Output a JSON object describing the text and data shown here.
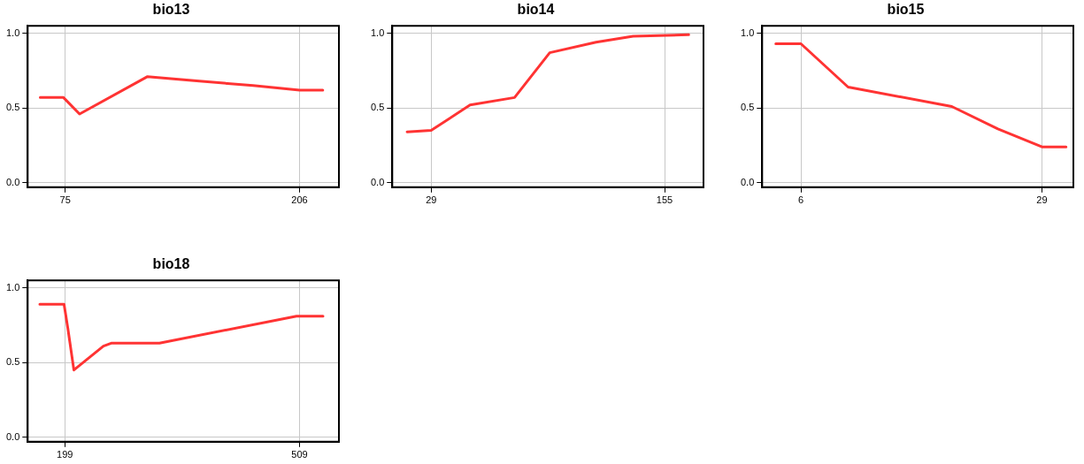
{
  "chart_data": [
    {
      "type": "line",
      "title": "bio13",
      "x": [
        61,
        74,
        83,
        121,
        150,
        180,
        206,
        219
      ],
      "series": [
        {
          "color": "#ff3333",
          "values": [
            0.57,
            0.57,
            0.46,
            0.71,
            0.68,
            0.65,
            0.62,
            0.62
          ]
        }
      ],
      "xlim": [
        54,
        228
      ],
      "xticks": [
        75,
        206
      ],
      "ylim": [
        -0.03,
        1.05
      ],
      "yticks": [
        {
          "value": 0,
          "label": "0.0"
        },
        {
          "value": 0.5,
          "label": "0.5"
        },
        {
          "value": 1,
          "label": "1.0"
        }
      ],
      "grid": true,
      "marker": "none",
      "legend": false
    },
    {
      "type": "line",
      "title": "bio14",
      "x": [
        16,
        29,
        50,
        74,
        93,
        118,
        138,
        168
      ],
      "series": [
        {
          "color": "#ff3333",
          "values": [
            0.34,
            0.35,
            0.52,
            0.57,
            0.87,
            0.94,
            0.98,
            0.99
          ]
        }
      ],
      "xlim": [
        8,
        176
      ],
      "xticks": [
        29,
        155
      ],
      "ylim": [
        -0.03,
        1.05
      ],
      "yticks": [
        {
          "value": 0,
          "label": "0.0"
        },
        {
          "value": 0.5,
          "label": "0.5"
        },
        {
          "value": 1,
          "label": "1.0"
        }
      ],
      "grid": true,
      "marker": "none",
      "legend": false
    },
    {
      "type": "line",
      "title": "bio15",
      "x": [
        3.6,
        6,
        10.5,
        20.4,
        24.8,
        29,
        31.3
      ],
      "series": [
        {
          "color": "#ff3333",
          "values": [
            0.93,
            0.93,
            0.64,
            0.51,
            0.36,
            0.24,
            0.24
          ]
        }
      ],
      "xlim": [
        2.3,
        32
      ],
      "xticks": [
        6,
        29
      ],
      "ylim": [
        -0.03,
        1.05
      ],
      "yticks": [
        {
          "value": 0,
          "label": "0.0"
        },
        {
          "value": 0.5,
          "label": "0.5"
        },
        {
          "value": 1,
          "label": "1.0"
        }
      ],
      "grid": true,
      "marker": "none",
      "legend": false
    },
    {
      "type": "line",
      "title": "bio18",
      "x": [
        166,
        198,
        203,
        211,
        250,
        261,
        324,
        505,
        540
      ],
      "series": [
        {
          "color": "#ff3333",
          "values": [
            0.89,
            0.89,
            0.73,
            0.45,
            0.61,
            0.63,
            0.63,
            0.81,
            0.81
          ]
        }
      ],
      "xlim": [
        150,
        561
      ],
      "xticks": [
        199,
        509
      ],
      "ylim": [
        -0.03,
        1.05
      ],
      "yticks": [
        {
          "value": 0,
          "label": "0.0"
        },
        {
          "value": 0.5,
          "label": "0.5"
        },
        {
          "value": 1,
          "label": "1.0"
        }
      ],
      "grid": true,
      "marker": "none",
      "legend": false
    }
  ]
}
